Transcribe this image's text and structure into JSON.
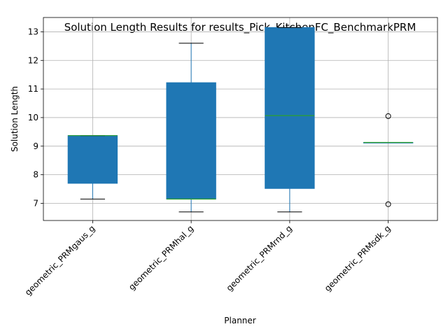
{
  "chart_data": {
    "type": "box",
    "title": "Solution Length Results for results_Pick_KitchenFC_BenchmarkPRM",
    "xlabel": "Planner",
    "ylabel": "Solution Length",
    "ylim": [
      6.4,
      13.5
    ],
    "yticks": [
      7,
      8,
      9,
      10,
      11,
      12,
      13
    ],
    "grid": true,
    "box_color": "#1f77b4",
    "median_color": "#2ca02c",
    "categories": [
      "geometric_PRMgaus_g",
      "geometric_PRMhal_g",
      "geometric_PRMrnd_g",
      "geometric_PRMsdk_g"
    ],
    "boxes": [
      {
        "name": "geometric_PRMgaus_g",
        "whisker_low": 7.15,
        "q1": 7.7,
        "median": 9.37,
        "q3": 9.37,
        "whisker_high": 9.37,
        "outliers": []
      },
      {
        "name": "geometric_PRMhal_g",
        "whisker_low": 6.7,
        "q1": 7.15,
        "median": 7.15,
        "q3": 11.22,
        "whisker_high": 12.6,
        "outliers": []
      },
      {
        "name": "geometric_PRMrnd_g",
        "whisker_low": 6.7,
        "q1": 7.52,
        "median": 10.07,
        "q3": 13.15,
        "whisker_high": 13.15,
        "outliers": []
      },
      {
        "name": "geometric_PRMsdk_g",
        "whisker_low": 9.13,
        "q1": 9.13,
        "median": 9.13,
        "q3": 9.13,
        "whisker_high": 9.13,
        "outliers": [
          10.05,
          6.97
        ]
      }
    ]
  }
}
